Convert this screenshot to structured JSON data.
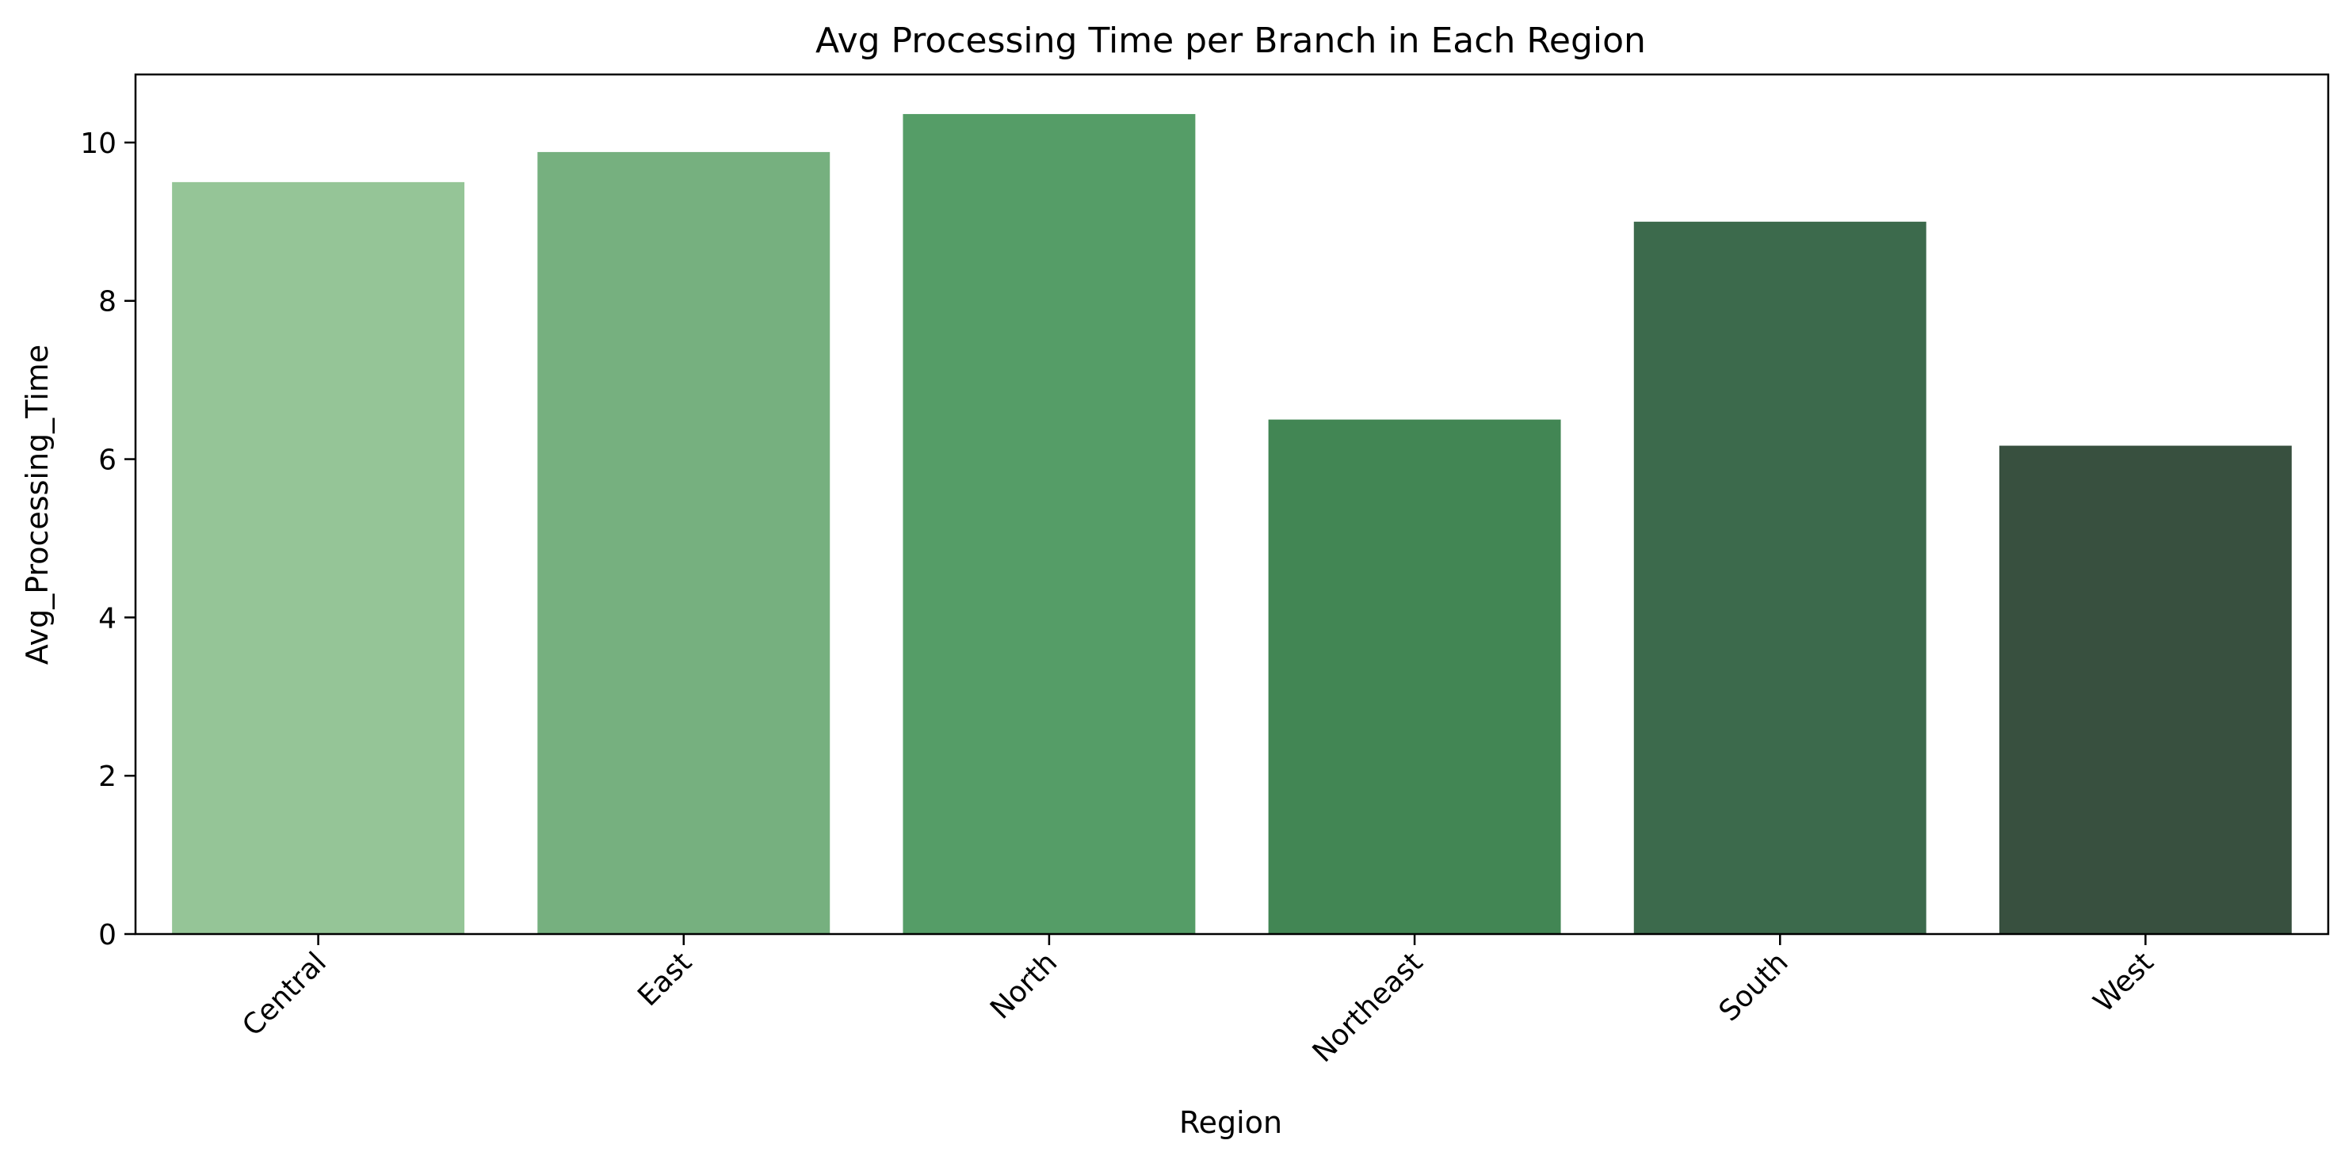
{
  "chart_data": {
    "type": "bar",
    "title": "Avg Processing Time per Branch in Each Region",
    "xlabel": "Region",
    "ylabel": "Avg_Processing_Time",
    "categories": [
      "Central",
      "East",
      "North",
      "Northeast",
      "South",
      "West"
    ],
    "values": [
      9.5,
      9.88,
      10.36,
      6.5,
      9.0,
      6.17
    ],
    "colors": [
      "#95c597",
      "#76b07f",
      "#559d67",
      "#428654",
      "#3c6a4c",
      "#38503f"
    ],
    "ylim": [
      0,
      10.86
    ],
    "yticks": [
      0,
      2,
      4,
      6,
      8,
      10
    ],
    "grid": false,
    "legend": "none"
  }
}
